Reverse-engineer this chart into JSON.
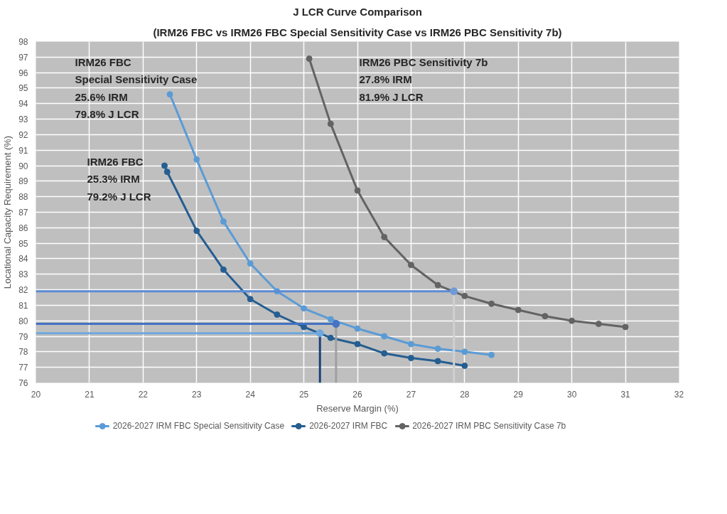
{
  "chart_data": {
    "type": "line",
    "title": "J LCR Curve Comparison",
    "subtitle": "(IRM26 FBC vs IRM26 FBC Special Sensitivity Case vs IRM26 PBC Sensitivity 7b)",
    "xlabel": "Reserve Margin (%)",
    "ylabel": "Locational Capacity Requirement (%)",
    "xlim": [
      20,
      32
    ],
    "xticks": [
      20,
      21,
      22,
      23,
      24,
      25,
      26,
      27,
      28,
      29,
      30,
      31,
      32
    ],
    "ylim": [
      76,
      98
    ],
    "yticks": [
      76,
      77,
      78,
      79,
      80,
      81,
      82,
      83,
      84,
      85,
      86,
      87,
      88,
      89,
      90,
      91,
      92,
      93,
      94,
      95,
      96,
      97,
      98
    ],
    "grid": true,
    "legend": "bottom",
    "marker": "circle",
    "line_style": "solid",
    "series": [
      {
        "name": "2026-2027 IRM FBC Special Sensitivity Case",
        "color": "#5b9bd5",
        "x": [
          22.5,
          23,
          23.5,
          24,
          24.5,
          25,
          25.5,
          26,
          26.5,
          27,
          27.5,
          28,
          28.5
        ],
        "values": [
          94.6,
          90.4,
          86.4,
          83.7,
          81.9,
          80.8,
          80.1,
          79.5,
          79.0,
          78.5,
          78.2,
          78.0,
          77.8
        ]
      },
      {
        "name": "2026-2027 IRM FBC",
        "color": "#255e91",
        "x": [
          22.4,
          22.45,
          23,
          23.5,
          24,
          24.5,
          25,
          25.5,
          26,
          26.5,
          27,
          27.5,
          28
        ],
        "values": [
          90.0,
          89.6,
          85.8,
          83.3,
          81.4,
          80.4,
          79.6,
          78.9,
          78.5,
          77.9,
          77.6,
          77.4,
          77.1
        ]
      },
      {
        "name": "2026-2027 IRM PBC Sensitivity Case 7b",
        "color": "#636363",
        "x": [
          25.1,
          25.5,
          26,
          26.5,
          27,
          27.5,
          28,
          28.5,
          29,
          29.5,
          30,
          30.5,
          31
        ],
        "values": [
          96.9,
          92.7,
          88.4,
          85.4,
          83.6,
          82.3,
          81.6,
          81.1,
          80.7,
          80.3,
          80.0,
          79.8,
          79.6
        ]
      },
      {
        "color": "#6fa8dc",
        "marker": "none",
        "x": [
          20,
          25.3
        ],
        "values": [
          79.2,
          79.2
        ]
      },
      {
        "color": "#1f3f7a",
        "marker": "none",
        "x": [
          25.3,
          25.3
        ],
        "values": [
          79.2,
          76
        ]
      },
      {
        "color": "#4472c4",
        "marker": "none",
        "x": [
          20,
          25.6
        ],
        "values": [
          79.8,
          79.8
        ]
      },
      {
        "color": "#a0a0a0",
        "marker": "none",
        "x": [
          25.6,
          25.6
        ],
        "values": [
          79.8,
          76
        ]
      },
      {
        "color": "#5b8bd4",
        "marker": "none",
        "x": [
          20,
          27.8
        ],
        "values": [
          81.9,
          81.9
        ]
      },
      {
        "color": "#d0d0d0",
        "marker": "none",
        "x": [
          27.8,
          27.8
        ],
        "values": [
          81.9,
          76
        ]
      },
      {
        "type": "scatter",
        "color": "#6fa8dc",
        "x": [
          25.3
        ],
        "values": [
          79.2
        ]
      },
      {
        "type": "scatter",
        "color": "#4472c4",
        "x": [
          25.6
        ],
        "values": [
          79.8
        ]
      },
      {
        "type": "scatter",
        "color": "#6f9ad8",
        "x": [
          27.8
        ],
        "values": [
          81.9
        ]
      }
    ],
    "annotations": [
      "IRM26 FBC\nSpecial Sensitivity Case\n25.6% IRM\n79.8% J LCR",
      "IRM26 FBC\n25.3% IRM\n79.2% J LCR",
      "IRM26 PBC Sensitivity 7b\n27.8% IRM\n81.9% J LCR"
    ]
  }
}
